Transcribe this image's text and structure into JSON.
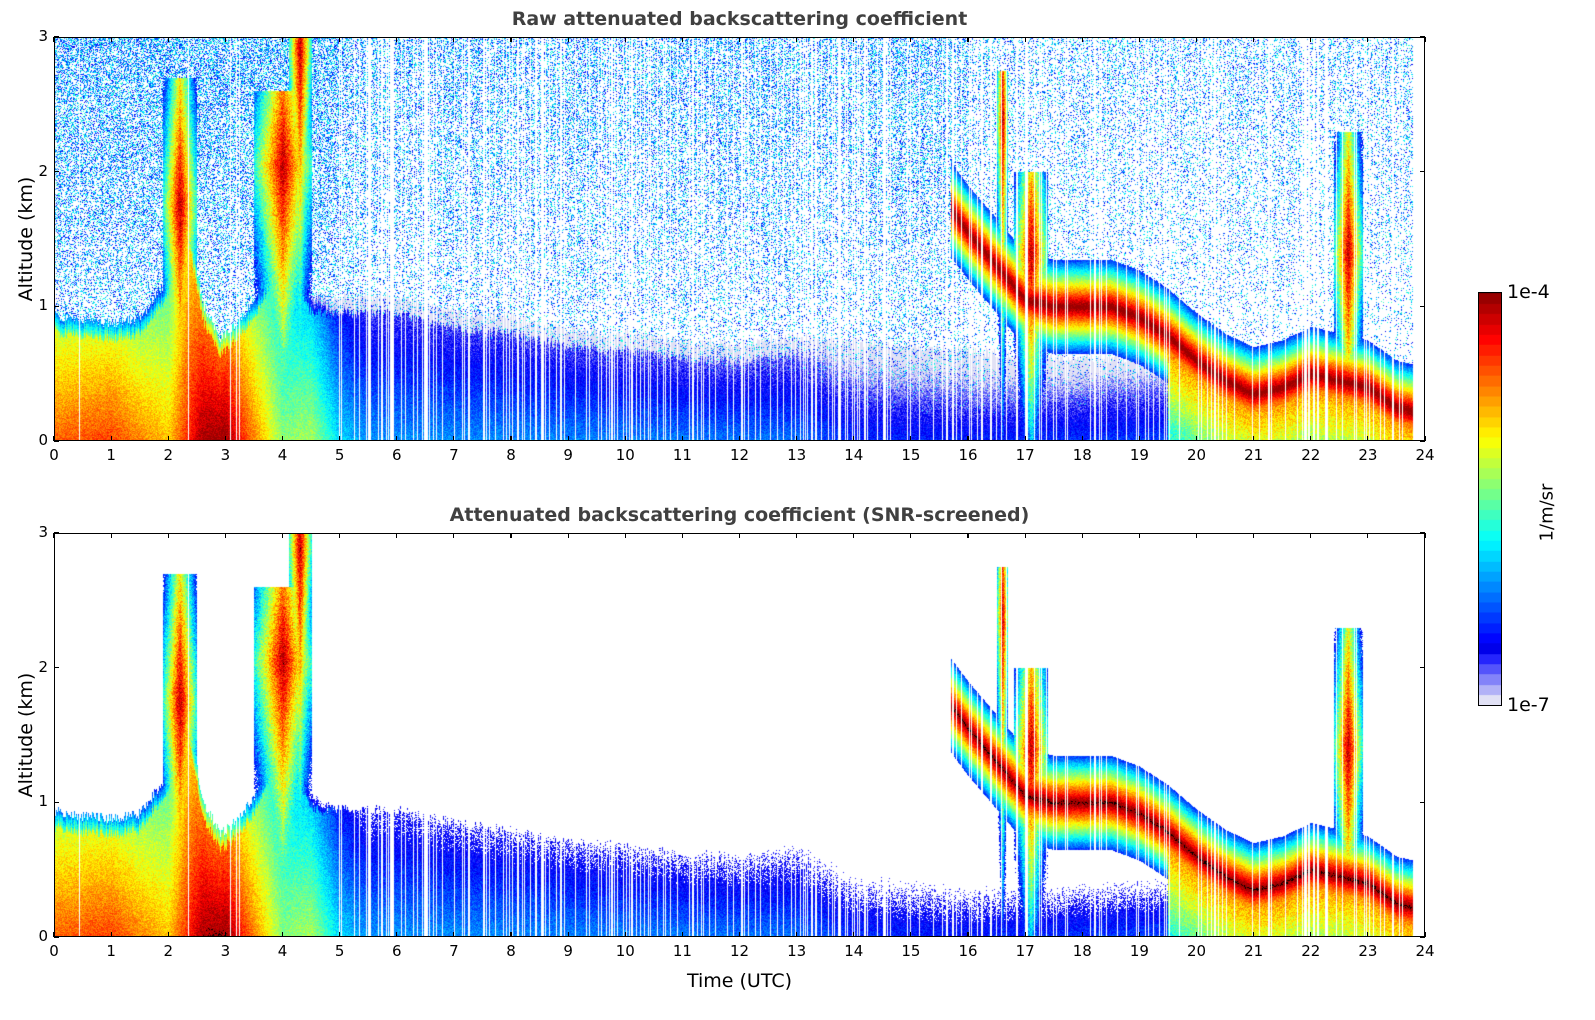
{
  "chart_data": [
    {
      "type": "heatmap",
      "title": "Raw attenuated backscattering coefficient",
      "xlabel": "",
      "ylabel": "Altitude (km)",
      "xlim": [
        0,
        24
      ],
      "ylim": [
        0,
        3
      ],
      "xticks": [
        0,
        1,
        2,
        3,
        4,
        5,
        6,
        7,
        8,
        9,
        10,
        11,
        12,
        13,
        14,
        15,
        16,
        17,
        18,
        19,
        20,
        21,
        22,
        23,
        24
      ],
      "xtick_labels": [
        "0",
        "1",
        "2",
        "3",
        "4",
        "5",
        "6",
        "7",
        "8",
        "9",
        "10",
        "11",
        "12",
        "13",
        "14",
        "15",
        "16",
        "17",
        "18",
        "19",
        "20",
        "21",
        "22",
        "23",
        "24"
      ],
      "yticks": [
        0,
        1,
        2,
        3
      ],
      "ytick_labels": [
        "0",
        "1",
        "2",
        "3"
      ],
      "screened": false,
      "grid": false
    },
    {
      "type": "heatmap",
      "title": "Attenuated backscattering coefficient (SNR-screened)",
      "xlabel": "Time (UTC)",
      "ylabel": "Altitude (km)",
      "xlim": [
        0,
        24
      ],
      "ylim": [
        0,
        3
      ],
      "xticks": [
        0,
        1,
        2,
        3,
        4,
        5,
        6,
        7,
        8,
        9,
        10,
        11,
        12,
        13,
        14,
        15,
        16,
        17,
        18,
        19,
        20,
        21,
        22,
        23,
        24
      ],
      "xtick_labels": [
        "0",
        "1",
        "2",
        "3",
        "4",
        "5",
        "6",
        "7",
        "8",
        "9",
        "10",
        "11",
        "12",
        "13",
        "14",
        "15",
        "16",
        "17",
        "18",
        "19",
        "20",
        "21",
        "22",
        "23",
        "24"
      ],
      "yticks": [
        0,
        1,
        2,
        3
      ],
      "ytick_labels": [
        "0",
        "1",
        "2",
        "3"
      ],
      "screened": true,
      "grid": false
    }
  ],
  "field": {
    "data_end_hour": 23.8,
    "aerosol_layer_top_km": {
      "t": [
        0,
        0.5,
        1,
        1.5,
        2,
        2.3,
        2.6,
        2.9,
        3.2,
        3.6,
        4,
        4.5,
        5,
        6,
        7,
        8,
        9,
        10,
        11,
        12,
        13,
        14,
        15,
        16,
        17,
        18,
        19,
        20,
        21,
        22,
        23,
        23.8
      ],
      "h": [
        0.82,
        0.78,
        0.76,
        0.8,
        1.1,
        1.6,
        0.9,
        0.65,
        0.75,
        1.0,
        1.4,
        0.95,
        0.95,
        0.95,
        0.85,
        0.8,
        0.7,
        0.68,
        0.62,
        0.6,
        0.66,
        0.62,
        0.58,
        0.56,
        0.5,
        0.5,
        0.5,
        0.5,
        0.5,
        0.5,
        0.45,
        0.45
      ]
    },
    "aerosol_intensity_log10": {
      "t": [
        0,
        1,
        2,
        2.6,
        3.0,
        3.5,
        4,
        4.5,
        5,
        5.5,
        6,
        10,
        13,
        14,
        16,
        20,
        23.8
      ],
      "v": [
        -4.6,
        -4.5,
        -4.9,
        -4.05,
        -4.0,
        -4.7,
        -5.4,
        -5.3,
        -5.9,
        -6.1,
        -6.1,
        -6.15,
        -6.2,
        -6.4,
        -6.45,
        -6.3,
        -6.2
      ]
    },
    "cloud_layer_km": {
      "t": [
        15.7,
        16.0,
        16.5,
        17.0,
        17.5,
        18.0,
        18.5,
        19.0,
        19.5,
        20.0,
        20.5,
        21.0,
        21.5,
        22.0,
        22.5,
        23.0,
        23.5,
        23.8
      ],
      "h": [
        1.72,
        1.55,
        1.3,
        1.05,
        1.0,
        1.0,
        1.0,
        0.92,
        0.78,
        0.6,
        0.45,
        0.35,
        0.4,
        0.5,
        0.45,
        0.4,
        0.25,
        0.22
      ]
    },
    "plumes": [
      {
        "t0": 1.9,
        "t1": 2.5,
        "top_km": 2.7,
        "center_km": 1.75
      },
      {
        "t0": 3.5,
        "t1": 4.5,
        "top_km": 2.6,
        "center_km": 2.05
      },
      {
        "t0": 4.1,
        "t1": 4.5,
        "top_km": 3.0,
        "center_km": 2.9
      },
      {
        "t0": 16.5,
        "t1": 16.7,
        "top_km": 2.75,
        "center_km": 2.4
      },
      {
        "t0": 16.8,
        "t1": 17.4,
        "top_km": 2.0,
        "center_km": 1.4
      },
      {
        "t0": 22.4,
        "t1": 22.9,
        "top_km": 2.3,
        "center_km": 1.4
      }
    ]
  },
  "colorbar": {
    "max_label": "1e-4",
    "min_label": "1e-7",
    "unit_label": "1/m/sr",
    "vmin_log10": -7,
    "vmax_log10": -4,
    "colormap": "jet",
    "levels": 40
  },
  "colors": {
    "frame": "#000000",
    "title": "#404040",
    "saturated": "#000000"
  }
}
